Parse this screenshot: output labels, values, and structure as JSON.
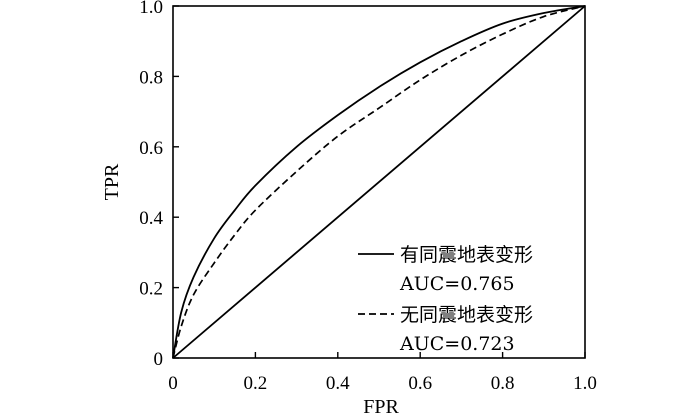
{
  "chart_data": {
    "type": "line",
    "title": "",
    "xlabel": "FPR",
    "ylabel": "TPR",
    "xlim": [
      0,
      1.0
    ],
    "ylim": [
      0,
      1.0
    ],
    "x_ticks": [
      "0",
      "0.2",
      "0.4",
      "0.6",
      "0.8",
      "1.0"
    ],
    "y_ticks": [
      "0",
      "0.2",
      "0.4",
      "0.6",
      "0.8",
      "1.0"
    ],
    "grid": false,
    "legend_position": "bottom-right",
    "series": [
      {
        "name": "有同震地表变形",
        "auc_label": "AUC=0.765",
        "style": "solid",
        "color": "#000000",
        "x": [
          0,
          0.02,
          0.05,
          0.1,
          0.15,
          0.2,
          0.3,
          0.4,
          0.5,
          0.6,
          0.7,
          0.8,
          0.9,
          1.0
        ],
        "y": [
          0,
          0.13,
          0.23,
          0.34,
          0.42,
          0.49,
          0.6,
          0.69,
          0.77,
          0.84,
          0.9,
          0.95,
          0.98,
          1.0
        ]
      },
      {
        "name": "无同震地表变形",
        "auc_label": "AUC=0.723",
        "style": "dashed",
        "color": "#000000",
        "x": [
          0,
          0.02,
          0.05,
          0.1,
          0.15,
          0.2,
          0.3,
          0.4,
          0.5,
          0.6,
          0.7,
          0.8,
          0.9,
          1.0
        ],
        "y": [
          0,
          0.09,
          0.18,
          0.27,
          0.35,
          0.42,
          0.53,
          0.63,
          0.71,
          0.79,
          0.86,
          0.92,
          0.97,
          1.0
        ]
      },
      {
        "style": "solid",
        "color": "#000000",
        "x": [
          0,
          1.0
        ],
        "y": [
          0,
          1.0
        ]
      }
    ]
  }
}
